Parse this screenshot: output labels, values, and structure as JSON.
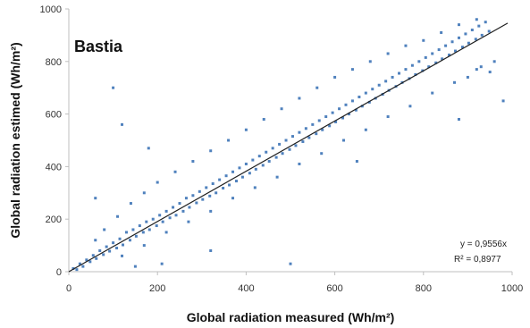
{
  "chart_data": {
    "type": "scatter",
    "title": "Bastia",
    "xlabel": "Global radiation measured (Wh/m²)",
    "ylabel": "Global radiation estimed (Wh/m²)",
    "xlim": [
      0,
      1000
    ],
    "ylim": [
      0,
      1000
    ],
    "x_ticks": [
      "0",
      "200",
      "400",
      "600",
      "800",
      "1000"
    ],
    "y_ticks": [
      "0",
      "200",
      "400",
      "600",
      "800",
      "1000"
    ],
    "grid": false,
    "point_color": "#4f81bd",
    "trendline": {
      "slope": 0.9556,
      "x_range": [
        0,
        1000
      ],
      "color": "#1f1f1f"
    },
    "annotations": [
      "y = 0,9556x",
      "R² = 0,8977"
    ],
    "points": [
      [
        10,
        12
      ],
      [
        18,
        8
      ],
      [
        25,
        30
      ],
      [
        32,
        20
      ],
      [
        40,
        45
      ],
      [
        48,
        38
      ],
      [
        55,
        62
      ],
      [
        62,
        50
      ],
      [
        70,
        80
      ],
      [
        78,
        65
      ],
      [
        85,
        95
      ],
      [
        92,
        78
      ],
      [
        100,
        110
      ],
      [
        108,
        90
      ],
      [
        115,
        125
      ],
      [
        122,
        102
      ],
      [
        130,
        150
      ],
      [
        138,
        120
      ],
      [
        145,
        160
      ],
      [
        152,
        135
      ],
      [
        160,
        175
      ],
      [
        168,
        150
      ],
      [
        175,
        190
      ],
      [
        182,
        160
      ],
      [
        190,
        200
      ],
      [
        198,
        175
      ],
      [
        205,
        215
      ],
      [
        212,
        190
      ],
      [
        220,
        230
      ],
      [
        228,
        205
      ],
      [
        235,
        245
      ],
      [
        242,
        215
      ],
      [
        250,
        260
      ],
      [
        258,
        230
      ],
      [
        265,
        280
      ],
      [
        272,
        245
      ],
      [
        280,
        290
      ],
      [
        288,
        262
      ],
      [
        295,
        305
      ],
      [
        302,
        275
      ],
      [
        310,
        320
      ],
      [
        318,
        288
      ],
      [
        325,
        335
      ],
      [
        332,
        300
      ],
      [
        340,
        350
      ],
      [
        348,
        318
      ],
      [
        355,
        365
      ],
      [
        362,
        330
      ],
      [
        370,
        380
      ],
      [
        378,
        345
      ],
      [
        385,
        395
      ],
      [
        392,
        360
      ],
      [
        400,
        410
      ],
      [
        408,
        375
      ],
      [
        415,
        425
      ],
      [
        422,
        390
      ],
      [
        430,
        440
      ],
      [
        438,
        405
      ],
      [
        445,
        455
      ],
      [
        452,
        420
      ],
      [
        460,
        470
      ],
      [
        468,
        435
      ],
      [
        475,
        485
      ],
      [
        482,
        450
      ],
      [
        490,
        500
      ],
      [
        498,
        465
      ],
      [
        505,
        515
      ],
      [
        512,
        480
      ],
      [
        520,
        530
      ],
      [
        528,
        495
      ],
      [
        535,
        545
      ],
      [
        542,
        510
      ],
      [
        550,
        560
      ],
      [
        558,
        525
      ],
      [
        565,
        575
      ],
      [
        572,
        540
      ],
      [
        580,
        590
      ],
      [
        588,
        555
      ],
      [
        595,
        605
      ],
      [
        602,
        570
      ],
      [
        610,
        620
      ],
      [
        618,
        585
      ],
      [
        625,
        635
      ],
      [
        632,
        600
      ],
      [
        640,
        650
      ],
      [
        648,
        615
      ],
      [
        655,
        665
      ],
      [
        662,
        630
      ],
      [
        670,
        680
      ],
      [
        678,
        645
      ],
      [
        685,
        695
      ],
      [
        692,
        660
      ],
      [
        700,
        710
      ],
      [
        708,
        675
      ],
      [
        715,
        725
      ],
      [
        722,
        690
      ],
      [
        730,
        740
      ],
      [
        738,
        705
      ],
      [
        745,
        755
      ],
      [
        752,
        720
      ],
      [
        760,
        770
      ],
      [
        768,
        735
      ],
      [
        775,
        785
      ],
      [
        782,
        750
      ],
      [
        790,
        800
      ],
      [
        798,
        765
      ],
      [
        805,
        815
      ],
      [
        812,
        780
      ],
      [
        820,
        830
      ],
      [
        828,
        795
      ],
      [
        835,
        845
      ],
      [
        842,
        810
      ],
      [
        850,
        860
      ],
      [
        858,
        825
      ],
      [
        865,
        875
      ],
      [
        872,
        840
      ],
      [
        880,
        890
      ],
      [
        888,
        855
      ],
      [
        895,
        905
      ],
      [
        902,
        870
      ],
      [
        910,
        920
      ],
      [
        918,
        885
      ],
      [
        925,
        935
      ],
      [
        932,
        900
      ],
      [
        940,
        950
      ],
      [
        948,
        915
      ],
      [
        60,
        120
      ],
      [
        80,
        160
      ],
      [
        110,
        210
      ],
      [
        140,
        260
      ],
      [
        170,
        300
      ],
      [
        200,
        340
      ],
      [
        240,
        380
      ],
      [
        280,
        420
      ],
      [
        320,
        460
      ],
      [
        360,
        500
      ],
      [
        400,
        540
      ],
      [
        440,
        580
      ],
      [
        480,
        620
      ],
      [
        520,
        660
      ],
      [
        560,
        700
      ],
      [
        600,
        740
      ],
      [
        640,
        770
      ],
      [
        680,
        800
      ],
      [
        720,
        830
      ],
      [
        760,
        860
      ],
      [
        800,
        880
      ],
      [
        840,
        910
      ],
      [
        880,
        940
      ],
      [
        920,
        960
      ],
      [
        120,
        60
      ],
      [
        170,
        100
      ],
      [
        220,
        150
      ],
      [
        270,
        190
      ],
      [
        320,
        230
      ],
      [
        370,
        280
      ],
      [
        420,
        320
      ],
      [
        470,
        360
      ],
      [
        520,
        410
      ],
      [
        570,
        450
      ],
      [
        620,
        500
      ],
      [
        670,
        540
      ],
      [
        720,
        590
      ],
      [
        770,
        630
      ],
      [
        820,
        680
      ],
      [
        870,
        720
      ],
      [
        920,
        770
      ],
      [
        960,
        800
      ],
      [
        950,
        760
      ],
      [
        900,
        740
      ],
      [
        150,
        20
      ],
      [
        210,
        30
      ],
      [
        320,
        80
      ],
      [
        500,
        30
      ],
      [
        100,
        700
      ],
      [
        120,
        560
      ],
      [
        650,
        420
      ],
      [
        880,
        580
      ],
      [
        930,
        780
      ],
      [
        980,
        650
      ],
      [
        60,
        280
      ],
      [
        180,
        470
      ]
    ]
  }
}
